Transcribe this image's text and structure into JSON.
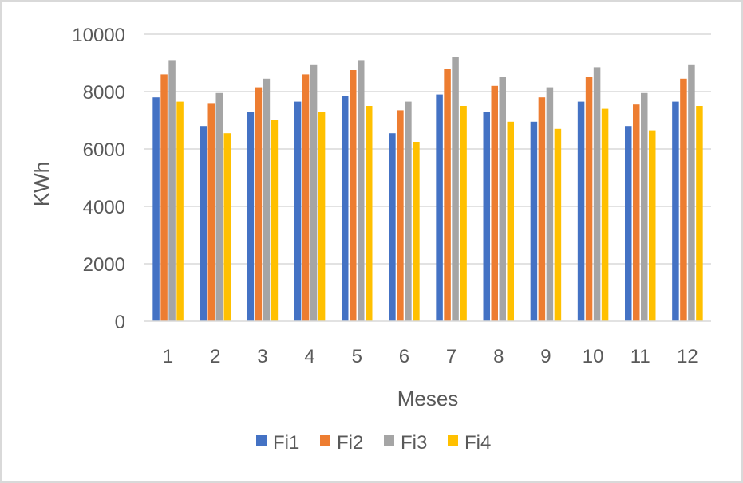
{
  "chart_data": {
    "type": "bar",
    "title": "",
    "xlabel": "Meses",
    "ylabel": "KWh",
    "categories": [
      "1",
      "2",
      "3",
      "4",
      "5",
      "6",
      "7",
      "8",
      "9",
      "10",
      "11",
      "12"
    ],
    "ylim": [
      0,
      10000
    ],
    "yticks": [
      0,
      2000,
      4000,
      6000,
      8000,
      10000
    ],
    "ytick_labels": [
      "0",
      "2000",
      "4000",
      "6000",
      "8000",
      "10000"
    ],
    "grid": true,
    "legend_position": "bottom",
    "series": [
      {
        "name": "Fi1",
        "color": "#4472c4",
        "values": [
          7800,
          6800,
          7300,
          7650,
          7850,
          6550,
          7900,
          7300,
          6950,
          7650,
          6800,
          7650
        ]
      },
      {
        "name": "Fi2",
        "color": "#ed7d31",
        "values": [
          8600,
          7600,
          8150,
          8600,
          8750,
          7350,
          8800,
          8200,
          7800,
          8500,
          7550,
          8450
        ]
      },
      {
        "name": "Fi3",
        "color": "#a5a5a5",
        "values": [
          9100,
          7950,
          8450,
          8950,
          9100,
          7650,
          9200,
          8500,
          8150,
          8850,
          7950,
          8950
        ]
      },
      {
        "name": "Fi4",
        "color": "#ffc000",
        "values": [
          7650,
          6550,
          7000,
          7300,
          7500,
          6250,
          7500,
          6950,
          6700,
          7400,
          6650,
          7500
        ]
      }
    ]
  }
}
